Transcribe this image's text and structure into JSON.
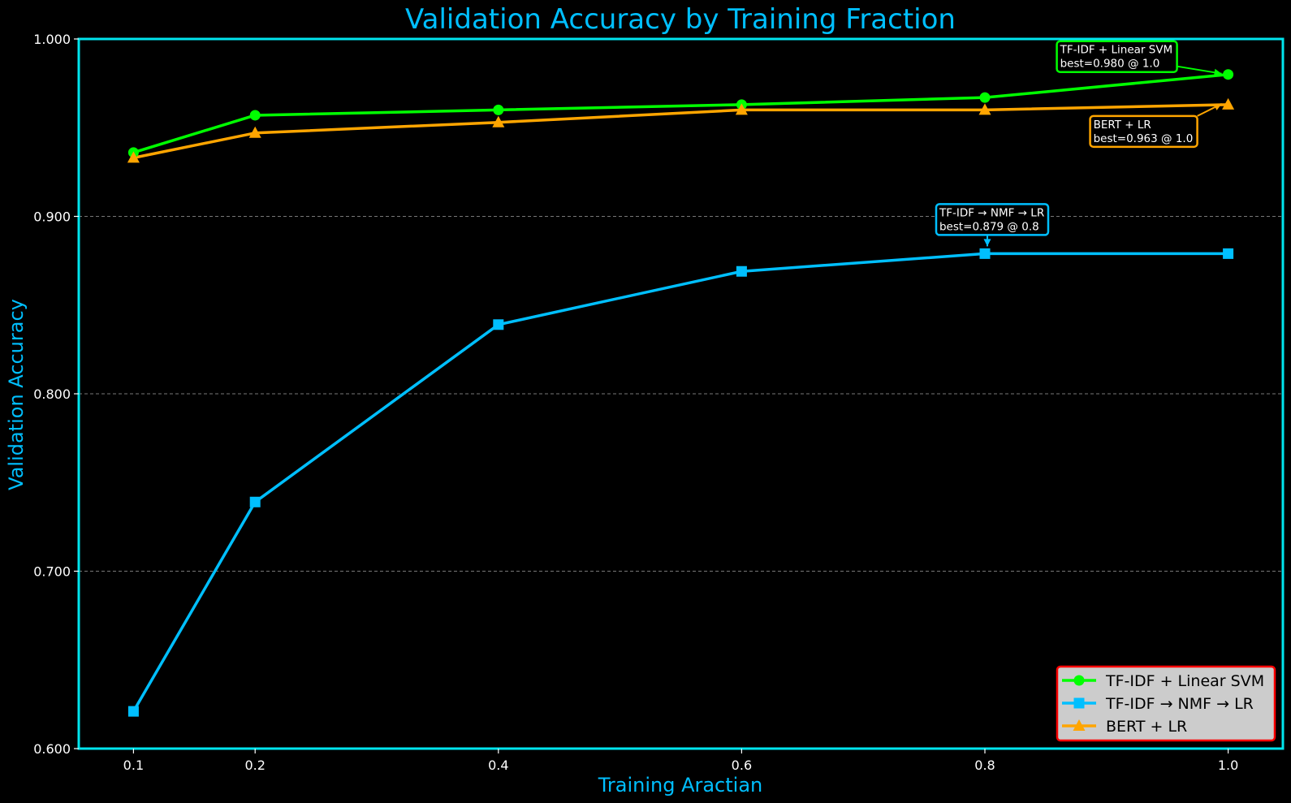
{
  "chart_data": {
    "type": "line",
    "title": "Validation Accuracy by Training Fraction",
    "xlabel": "Training Aractian",
    "ylabel": "Validation Accuracy",
    "xlim": [
      0.055,
      1.045
    ],
    "ylim": [
      0.6,
      1.0
    ],
    "x": [
      0.1,
      0.2,
      0.4,
      0.6,
      0.8,
      1.0
    ],
    "x_tick_labels": [
      "0.1",
      "0.2",
      "0.4",
      "0.6",
      "0.8",
      "1.0"
    ],
    "y_ticks": [
      0.6,
      0.7,
      0.8,
      0.9,
      1.0
    ],
    "y_tick_labels": [
      "0.600",
      "0.700",
      "0.800",
      "0.900",
      "1.000"
    ],
    "grid": "horizontal dashed",
    "legend_position": "lower-right",
    "series": [
      {
        "name": "TF-IDF + Linear SVM",
        "color": "#00ff00",
        "marker": "circle",
        "values": [
          0.936,
          0.957,
          0.96,
          0.963,
          0.967,
          0.98
        ]
      },
      {
        "name": "TF-IDF → NMF → LR",
        "color": "#00bfff",
        "marker": "square",
        "values": [
          0.621,
          0.739,
          0.839,
          0.869,
          0.879,
          0.879
        ]
      },
      {
        "name": "BERT + LR",
        "color": "#ffa500",
        "marker": "triangle",
        "values": [
          0.933,
          0.947,
          0.953,
          0.96,
          0.96,
          0.963
        ]
      }
    ],
    "annotations": [
      {
        "series": 0,
        "line1": "TF-IDF + Linear SVM",
        "line2": "best=0.980 @ 1.0"
      },
      {
        "series": 1,
        "line1": "TF-IDF → NMF → LR",
        "line2": "best=0.879 @ 0.8"
      },
      {
        "series": 2,
        "line1": "BERT + LR",
        "line2": "best=0.963 @ 1.0"
      }
    ],
    "colors": {
      "background": "#000000",
      "frame": "#00e5ee",
      "title": "#00bfff",
      "grid": "#777777",
      "legend_bg": "#cccccc",
      "legend_border": "#ff0000"
    }
  }
}
